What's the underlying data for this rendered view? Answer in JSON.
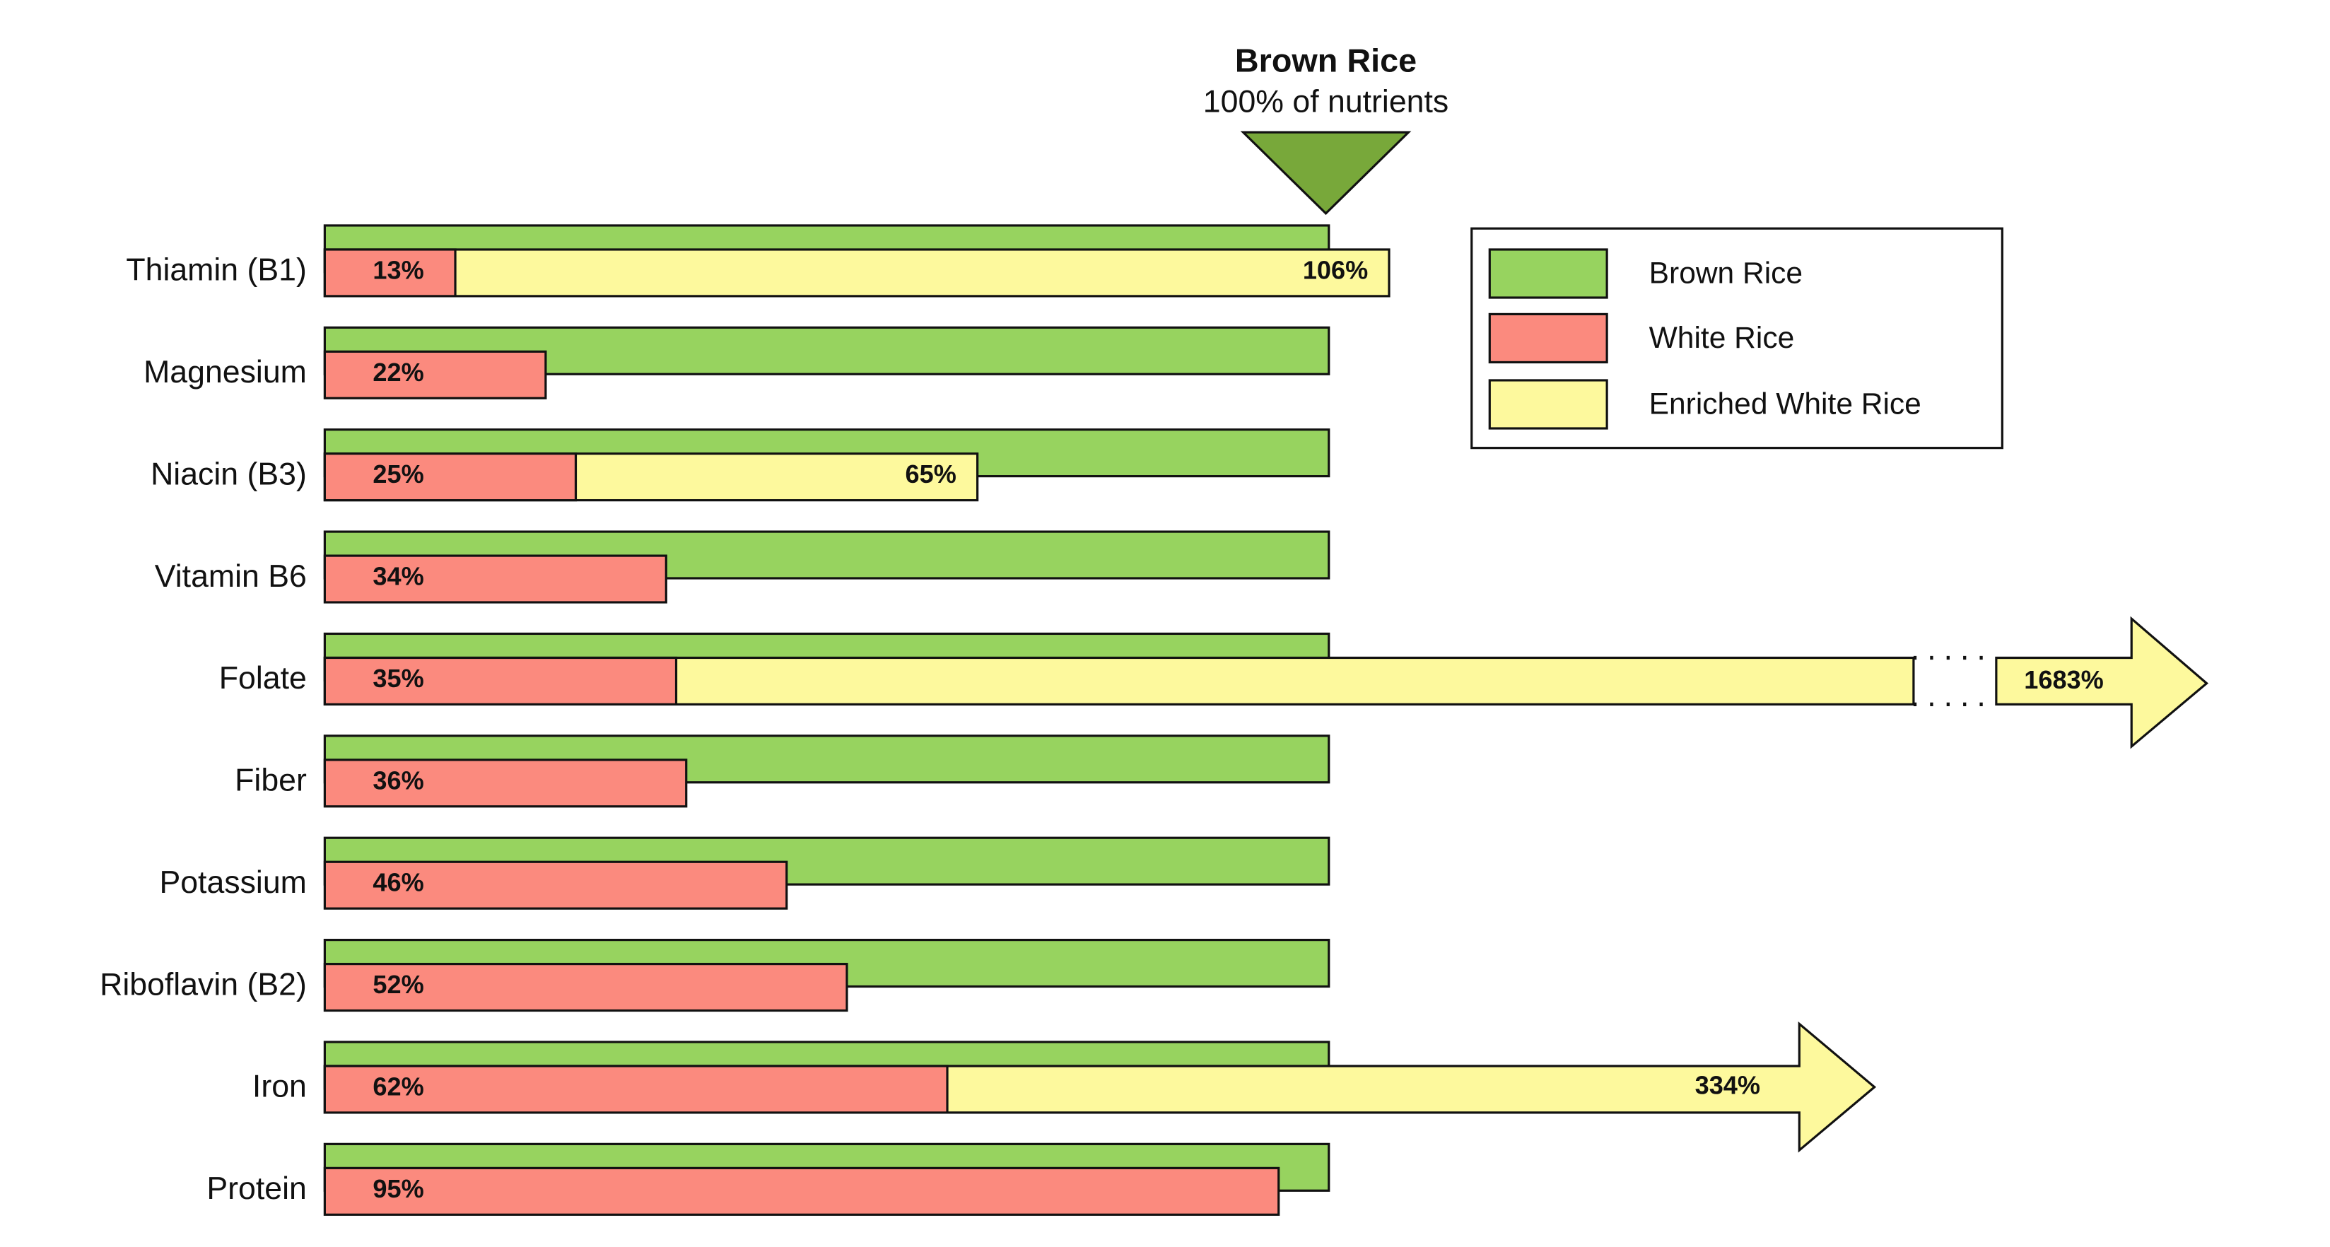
{
  "chart_data": {
    "type": "bar",
    "orientation": "horizontal",
    "annotation_title": "Brown Rice",
    "annotation": "100% of nutrients",
    "categories": [
      "Thiamin (B1)",
      "Magnesium",
      "Niacin (B3)",
      "Vitamin B6",
      "Folate",
      "Fiber",
      "Potassium",
      "Riboflavin (B2)",
      "Iron",
      "Protein"
    ],
    "series": [
      {
        "name": "Brown Rice",
        "color": "#97d35f",
        "values": [
          100,
          100,
          100,
          100,
          100,
          100,
          100,
          100,
          100,
          100
        ]
      },
      {
        "name": "White Rice",
        "color": "#fb8a7e",
        "values": [
          13,
          22,
          25,
          34,
          35,
          36,
          46,
          52,
          62,
          95
        ],
        "value_labels": [
          "13%",
          "22%",
          "25%",
          "34%",
          "35%",
          "36%",
          "46%",
          "52%",
          "62%",
          "95%"
        ]
      },
      {
        "name": "Enriched White Rice",
        "color": "#fdf99d",
        "values": [
          106,
          null,
          65,
          null,
          1683,
          null,
          null,
          null,
          334,
          null
        ],
        "value_labels": [
          "106%",
          null,
          "65%",
          null,
          "1683%",
          null,
          null,
          null,
          "334%",
          null
        ]
      }
    ],
    "legend": "upper right",
    "marker_color": "#78a83a"
  }
}
